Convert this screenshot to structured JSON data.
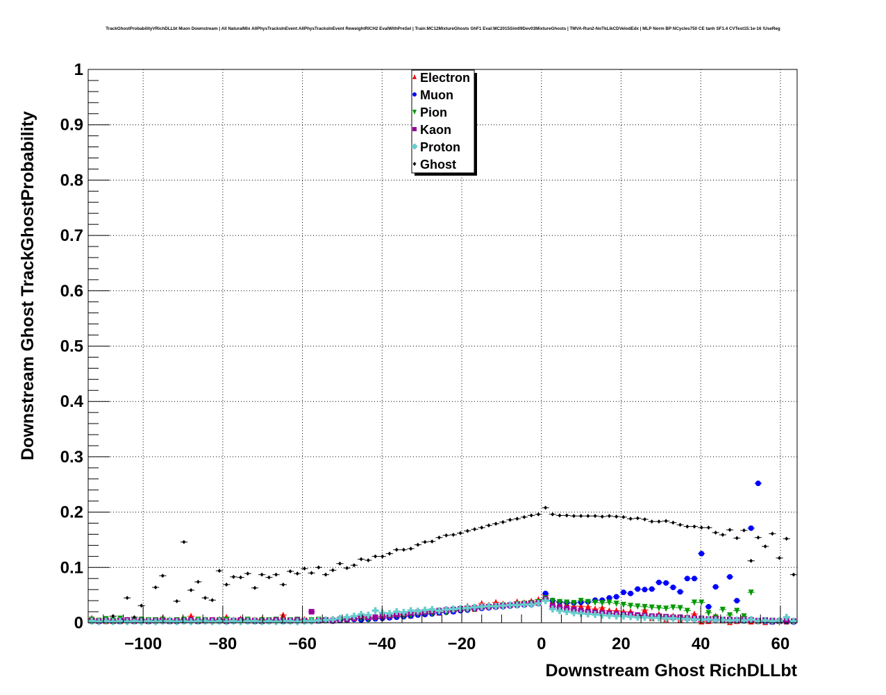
{
  "chart_data": {
    "type": "scatter",
    "title": "TrackGhostProbabilityVRichDLLbt Muon Downstream | All NaturalMix AllPhysTracksInEvent:AllPhysTracksInEvent ReweightRICH2 EvalWithPreSel | Train:MC12MixtureGhosts GhF1 Eval:MC2015Sim09Dev03MixtureGhosts | TMVA-Run2-NoTkLikCDVelodEdx | MLP Norm BP NCycles750 CE tanh SF1.4 CVTest15:1e-16 !UseReg",
    "xlabel": "Downstream Ghost RichDLLbt",
    "ylabel": "Downstream Ghost TrackGhostProbability",
    "xlim": [
      -113.8,
      64.2
    ],
    "ylim": [
      0,
      1
    ],
    "grid": true,
    "legend_position": "top-center",
    "xticks": [
      -100,
      -80,
      -60,
      -40,
      -20,
      0,
      20,
      40,
      60
    ],
    "xtick_labels": [
      "−100",
      "−80",
      "−60",
      "−40",
      "−20",
      "0",
      "20",
      "40",
      "60"
    ],
    "yticks": [
      0,
      0.1,
      0.2,
      0.3,
      0.4,
      0.5,
      0.6,
      0.7,
      0.8,
      0.9,
      1
    ],
    "ytick_labels": [
      "0",
      "0.1",
      "0.2",
      "0.3",
      "0.4",
      "0.5",
      "0.6",
      "0.7",
      "0.8",
      "0.9",
      "1"
    ],
    "bins": {
      "first_center": -112.9,
      "width": 1.78,
      "count": 100
    },
    "series": [
      {
        "name": "Electron",
        "color": "#ff0000",
        "marker": "triangle-up",
        "values": [
          0.008,
          0.004,
          0.003,
          0.004,
          0.003,
          0.005,
          0.004,
          0.006,
          0.005,
          0.004,
          0.008,
          0.005,
          0.004,
          0.006,
          0.012,
          0.004,
          0.005,
          0.004,
          0.006,
          0.01,
          0.005,
          0.007,
          0.004,
          0.005,
          0.006,
          0.004,
          0.005,
          0.014,
          0.004,
          0.005,
          0.006,
          0.005,
          0.004,
          0.006,
          0.005,
          0.007,
          0.006,
          0.008,
          0.01,
          0.009,
          0.01,
          0.012,
          0.011,
          0.012,
          0.014,
          0.013,
          0.016,
          0.017,
          0.02,
          0.018,
          0.022,
          0.021,
          0.024,
          0.03,
          0.025,
          0.035,
          0.032,
          0.037,
          0.034,
          0.033,
          0.038,
          0.036,
          0.039,
          0.042,
          0.05,
          0.04,
          0.037,
          0.035,
          0.03,
          0.03,
          0.029,
          0.025,
          0.027,
          0.022,
          0.022,
          0.02,
          0.02,
          0.013,
          0.023,
          0.008,
          0.015,
          0.006,
          0.012,
          0.005,
          0.01,
          0.016,
          0.002,
          0.003,
          0.012,
          0.004,
          0.001,
          0.003,
          0.006,
          0.002,
          0.003,
          0.001,
          0.002,
          0.004,
          0.002,
          0.003
        ]
      },
      {
        "name": "Muon",
        "color": "#0000ff",
        "marker": "circle",
        "values": [
          0.003,
          0.002,
          0.004,
          0.003,
          0.002,
          0.003,
          0.004,
          0.003,
          0.002,
          0.003,
          0.003,
          0.004,
          0.002,
          0.003,
          0.003,
          0.002,
          0.004,
          0.003,
          0.003,
          0.002,
          0.003,
          0.004,
          0.003,
          0.002,
          0.003,
          0.003,
          0.004,
          0.002,
          0.003,
          0.003,
          0.004,
          0.003,
          0.003,
          0.004,
          0.003,
          0.004,
          0.005,
          0.006,
          0.005,
          0.006,
          0.007,
          0.008,
          0.009,
          0.01,
          0.011,
          0.012,
          0.014,
          0.015,
          0.016,
          0.018,
          0.019,
          0.02,
          0.022,
          0.023,
          0.025,
          0.026,
          0.027,
          0.028,
          0.029,
          0.03,
          0.031,
          0.032,
          0.033,
          0.035,
          0.053,
          0.04,
          0.038,
          0.037,
          0.036,
          0.037,
          0.038,
          0.041,
          0.041,
          0.045,
          0.047,
          0.055,
          0.053,
          0.061,
          0.06,
          0.061,
          0.073,
          0.072,
          0.064,
          0.056,
          0.08,
          0.08,
          0.125,
          0.029,
          0.065,
          0.005,
          0.083,
          0.04,
          0.003,
          0.171,
          0.252,
          0.002,
          0.001,
          0.003,
          0.002,
          0.001
        ]
      },
      {
        "name": "Pion",
        "color": "#009900",
        "marker": "triangle-down",
        "values": [
          0.006,
          0.004,
          0.007,
          0.005,
          0.008,
          0.005,
          0.004,
          0.006,
          0.005,
          0.005,
          0.006,
          0.004,
          0.005,
          0.006,
          0.004,
          0.006,
          0.005,
          0.004,
          0.005,
          0.006,
          0.004,
          0.005,
          0.006,
          0.004,
          0.005,
          0.005,
          0.006,
          0.004,
          0.005,
          0.006,
          0.004,
          0.005,
          0.006,
          0.005,
          0.004,
          0.006,
          0.005,
          0.007,
          0.008,
          0.007,
          0.008,
          0.01,
          0.011,
          0.013,
          0.012,
          0.014,
          0.016,
          0.018,
          0.017,
          0.02,
          0.019,
          0.022,
          0.024,
          0.023,
          0.026,
          0.027,
          0.029,
          0.03,
          0.032,
          0.031,
          0.034,
          0.035,
          0.036,
          0.038,
          0.045,
          0.04,
          0.038,
          0.037,
          0.036,
          0.04,
          0.038,
          0.037,
          0.036,
          0.037,
          0.035,
          0.033,
          0.031,
          0.03,
          0.029,
          0.028,
          0.027,
          0.026,
          0.028,
          0.027,
          0.022,
          0.037,
          0.037,
          0.018,
          0.01,
          0.024,
          0.014,
          0.022,
          0.012,
          0.055,
          0.003,
          0.002,
          0.004,
          0.001,
          0.003,
          0.002
        ]
      },
      {
        "name": "Kaon",
        "color": "#990099",
        "marker": "square",
        "values": [
          0.004,
          0.003,
          0.004,
          0.003,
          0.004,
          0.005,
          0.003,
          0.004,
          0.003,
          0.004,
          0.004,
          0.003,
          0.004,
          0.004,
          0.005,
          0.003,
          0.004,
          0.005,
          0.004,
          0.003,
          0.004,
          0.005,
          0.004,
          0.004,
          0.003,
          0.004,
          0.005,
          0.004,
          0.004,
          0.005,
          0.004,
          0.02,
          0.004,
          0.005,
          0.004,
          0.006,
          0.007,
          0.008,
          0.012,
          0.01,
          0.01,
          0.012,
          0.013,
          0.015,
          0.016,
          0.018,
          0.019,
          0.02,
          0.021,
          0.022,
          0.023,
          0.024,
          0.025,
          0.026,
          0.027,
          0.028,
          0.029,
          0.03,
          0.031,
          0.032,
          0.033,
          0.034,
          0.035,
          0.036,
          0.043,
          0.03,
          0.028,
          0.026,
          0.024,
          0.022,
          0.02,
          0.019,
          0.018,
          0.017,
          0.016,
          0.015,
          0.015,
          0.014,
          0.013,
          0.012,
          0.012,
          0.011,
          0.01,
          0.01,
          0.009,
          0.008,
          0.008,
          0.007,
          0.007,
          0.006,
          0.006,
          0.005,
          0.006,
          0.005,
          0.004,
          0.005,
          0.004,
          0.003,
          0.004,
          0.003
        ]
      },
      {
        "name": "Proton",
        "color": "#66cccc",
        "marker": "cross",
        "values": [
          0.003,
          0.002,
          0.003,
          0.002,
          0.003,
          0.002,
          0.003,
          0.002,
          0.003,
          0.002,
          0.003,
          0.003,
          0.002,
          0.003,
          0.002,
          0.003,
          0.003,
          0.002,
          0.003,
          0.002,
          0.003,
          0.002,
          0.003,
          0.003,
          0.002,
          0.003,
          0.002,
          0.003,
          0.003,
          0.002,
          0.003,
          0.003,
          0.004,
          0.005,
          0.006,
          0.008,
          0.01,
          0.012,
          0.015,
          0.014,
          0.022,
          0.018,
          0.017,
          0.02,
          0.019,
          0.022,
          0.021,
          0.023,
          0.024,
          0.022,
          0.024,
          0.025,
          0.026,
          0.027,
          0.028,
          0.029,
          0.03,
          0.03,
          0.031,
          0.032,
          0.032,
          0.033,
          0.033,
          0.035,
          0.04,
          0.025,
          0.022,
          0.02,
          0.018,
          0.017,
          0.016,
          0.015,
          0.014,
          0.013,
          0.012,
          0.012,
          0.011,
          0.01,
          0.01,
          0.009,
          0.009,
          0.008,
          0.008,
          0.007,
          0.007,
          0.006,
          0.006,
          0.006,
          0.005,
          0.005,
          0.004,
          0.005,
          0.004,
          0.006,
          0.003,
          0.004,
          0.003,
          0.004,
          0.01,
          0.003
        ]
      },
      {
        "name": "Ghost",
        "color": "#000000",
        "marker": "diamond",
        "values": [
          null,
          null,
          null,
          0.012,
          null,
          0.045,
          0.01,
          0.031,
          null,
          0.064,
          0.085,
          null,
          0.039,
          0.146,
          0.059,
          0.074,
          0.045,
          0.041,
          0.094,
          0.069,
          0.083,
          0.082,
          0.089,
          0.063,
          0.087,
          0.082,
          0.087,
          0.069,
          0.093,
          0.089,
          0.098,
          0.09,
          0.1,
          0.087,
          0.095,
          0.107,
          0.099,
          0.104,
          0.115,
          0.113,
          0.12,
          0.12,
          0.125,
          0.132,
          0.132,
          0.134,
          0.141,
          0.146,
          0.147,
          0.154,
          0.158,
          0.159,
          0.162,
          0.166,
          0.169,
          0.172,
          0.176,
          0.179,
          0.182,
          0.186,
          0.188,
          0.191,
          0.194,
          0.196,
          0.208,
          0.196,
          0.194,
          0.194,
          0.193,
          0.193,
          0.193,
          0.193,
          0.192,
          0.193,
          0.192,
          0.191,
          0.188,
          0.189,
          0.187,
          0.183,
          0.183,
          0.184,
          0.181,
          0.177,
          0.174,
          0.174,
          0.172,
          0.172,
          0.163,
          0.159,
          0.168,
          0.153,
          0.167,
          0.112,
          0.154,
          0.138,
          0.161,
          0.117,
          0.152,
          0.087
        ]
      }
    ]
  }
}
